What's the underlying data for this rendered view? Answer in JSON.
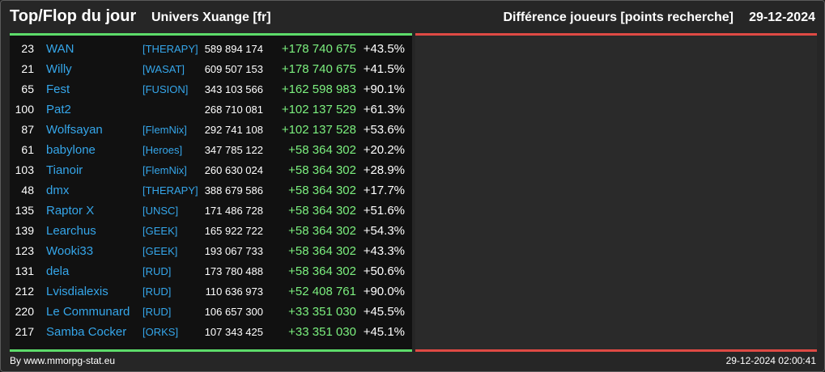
{
  "header": {
    "title": "Top/Flop du jour",
    "subtitle": "Univers Xuange [fr]",
    "right_title": "Différence joueurs [points recherche]",
    "date": "29-12-2024"
  },
  "rows": [
    {
      "rank": "23",
      "name": "WAN",
      "alliance": "[THERAPY]",
      "points": "589 894 174",
      "diff": "+178 740 675",
      "pct": "+43.5%"
    },
    {
      "rank": "21",
      "name": "Willy",
      "alliance": "[WASAT]",
      "points": "609 507 153",
      "diff": "+178 740 675",
      "pct": "+41.5%"
    },
    {
      "rank": "65",
      "name": "Fest",
      "alliance": "[FUSION]",
      "points": "343 103 566",
      "diff": "+162 598 983",
      "pct": "+90.1%"
    },
    {
      "rank": "100",
      "name": "Pat2",
      "alliance": "",
      "points": "268 710 081",
      "diff": "+102 137 529",
      "pct": "+61.3%"
    },
    {
      "rank": "87",
      "name": "Wolfsayan",
      "alliance": "[FlemNix]",
      "points": "292 741 108",
      "diff": "+102 137 528",
      "pct": "+53.6%"
    },
    {
      "rank": "61",
      "name": "babylone",
      "alliance": "[Heroes]",
      "points": "347 785 122",
      "diff": "+58 364 302",
      "pct": "+20.2%"
    },
    {
      "rank": "103",
      "name": "Tianoir",
      "alliance": "[FlemNix]",
      "points": "260 630 024",
      "diff": "+58 364 302",
      "pct": "+28.9%"
    },
    {
      "rank": "48",
      "name": "dmx",
      "alliance": "[THERAPY]",
      "points": "388 679 586",
      "diff": "+58 364 302",
      "pct": "+17.7%"
    },
    {
      "rank": "135",
      "name": "Raptor X",
      "alliance": "[UNSC]",
      "points": "171 486 728",
      "diff": "+58 364 302",
      "pct": "+51.6%"
    },
    {
      "rank": "139",
      "name": "Learchus",
      "alliance": "[GEEK]",
      "points": "165 922 722",
      "diff": "+58 364 302",
      "pct": "+54.3%"
    },
    {
      "rank": "123",
      "name": "Wooki33",
      "alliance": "[GEEK]",
      "points": "193 067 733",
      "diff": "+58 364 302",
      "pct": "+43.3%"
    },
    {
      "rank": "131",
      "name": "dela",
      "alliance": "[RUD]",
      "points": "173 780 488",
      "diff": "+58 364 302",
      "pct": "+50.6%"
    },
    {
      "rank": "212",
      "name": "Lvisdialexis",
      "alliance": "[RUD]",
      "points": "110 636 973",
      "diff": "+52 408 761",
      "pct": "+90.0%"
    },
    {
      "rank": "220",
      "name": "Le Communard",
      "alliance": "[RUD]",
      "points": "106 657 300",
      "diff": "+33 351 030",
      "pct": "+45.5%"
    },
    {
      "rank": "217",
      "name": "Samba Cocker",
      "alliance": "[ORKS]",
      "points": "107 343 425",
      "diff": "+33 351 030",
      "pct": "+45.1%"
    }
  ],
  "footer": {
    "credit": "By www.mmorpg-stat.eu",
    "timestamp": "29-12-2024 02:00:41"
  },
  "colors": {
    "accent_top": "#5ddc6a",
    "accent_flop": "#df4a44",
    "player_link": "#35a6ea",
    "gain": "#7cf07f"
  }
}
